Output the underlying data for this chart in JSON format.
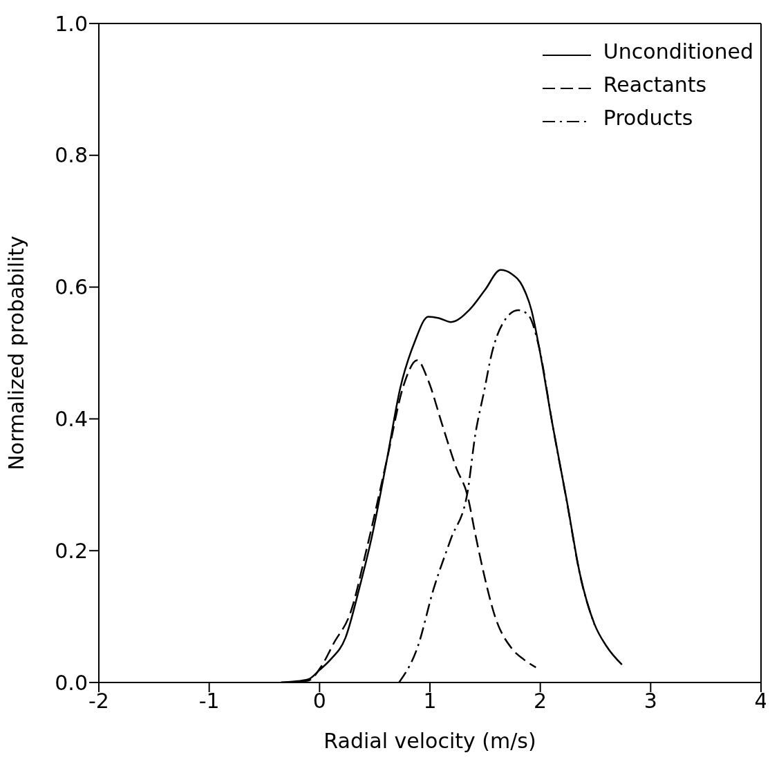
{
  "chart_data": {
    "type": "line",
    "xlabel": "Radial velocity (m/s)",
    "ylabel": "Normalized probability",
    "xlim": [
      -2,
      4
    ],
    "xticks": [
      -2,
      -1,
      0,
      1,
      2,
      3,
      4
    ],
    "ylim": [
      0,
      1
    ],
    "yticks": [
      {
        "value": 0,
        "label": "0.0"
      },
      {
        "value": 0.2,
        "label": "0.2"
      },
      {
        "value": 0.4,
        "label": "0.4"
      },
      {
        "value": 0.6,
        "label": "0.6"
      },
      {
        "value": 0.8,
        "label": "0.8"
      },
      {
        "value": 1,
        "label": "1.0"
      }
    ],
    "legend": "top right",
    "marker": "none",
    "series": [
      {
        "name": "Unconditioned",
        "color": "#000000",
        "line_style": "solid",
        "x": [
          -0.35,
          -0.2,
          -0.1,
          0,
          0.1,
          0.235,
          0.36,
          0.48,
          0.61,
          0.73,
          0.86,
          0.985,
          1.08,
          1.19,
          1.36,
          1.5,
          1.64,
          1.74,
          1.84,
          1.92,
          1.99,
          2.11,
          2.24,
          2.36,
          2.49,
          2.6,
          2.74
        ],
        "values": [
          0,
          0.002,
          0.005,
          0.019,
          0.035,
          0.068,
          0.143,
          0.226,
          0.338,
          0.446,
          0.516,
          0.555,
          0.553,
          0.547,
          0.566,
          0.596,
          0.626,
          0.62,
          0.601,
          0.565,
          0.508,
          0.392,
          0.276,
          0.164,
          0.089,
          0.055,
          0.027
        ]
      },
      {
        "name": "Reactants",
        "color": "#000000",
        "line_style": "dashed",
        "x": [
          -0.35,
          -0.1,
          0.01,
          0.13,
          0.28,
          0.43,
          0.61,
          0.76,
          0.885,
          0.985,
          1.11,
          1.24,
          1.34,
          1.41,
          1.49,
          1.59,
          1.74,
          1.85,
          1.96
        ],
        "values": [
          0,
          0.003,
          0.023,
          0.06,
          0.106,
          0.205,
          0.338,
          0.45,
          0.489,
          0.458,
          0.392,
          0.325,
          0.284,
          0.226,
          0.164,
          0.1,
          0.052,
          0.035,
          0.023
        ]
      },
      {
        "name": "Products",
        "color": "#000000",
        "line_style": "dashdot",
        "x": [
          0.72,
          0.885,
          1.035,
          1.19,
          1.34,
          1.41,
          1.49,
          1.56,
          1.66,
          1.8,
          1.89,
          1.99,
          2.11,
          2.24,
          2.36,
          2.49
        ],
        "values": [
          0,
          0.052,
          0.143,
          0.218,
          0.288,
          0.375,
          0.441,
          0.499,
          0.545,
          0.565,
          0.558,
          0.508,
          0.392,
          0.275,
          0.163,
          0.088
        ]
      }
    ]
  }
}
